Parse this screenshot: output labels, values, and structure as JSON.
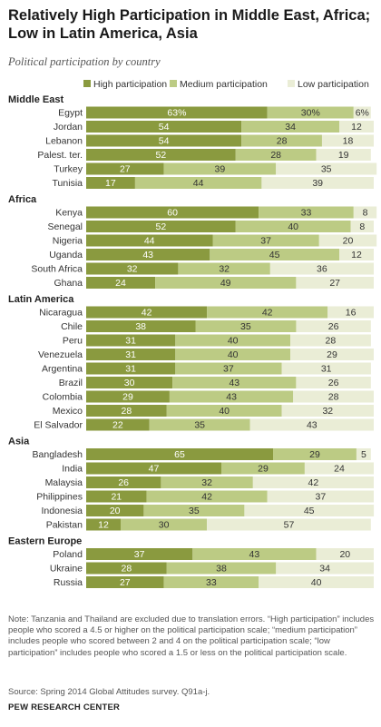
{
  "title": "Relatively High Participation in Middle East, Africa; Low in Latin America, Asia",
  "subtitle": "Political participation by country",
  "note": "Note: Tanzania and Thailand are excluded due to translation errors. “High participation” includes people who scored a 4.5 or higher on the political participation scale; “medium participation” includes people who scored between 2 and 4 on the political participation scale; “low participation” includes people who scored a 1.5 or less on the political participation scale.",
  "source": "Source: Spring 2014 Global Attitudes survey. Q91a-j.",
  "footer": "PEW RESEARCH CENTER",
  "colors": {
    "high": "#8a9a3f",
    "medium": "#bccb84",
    "low": "#eaedd6"
  },
  "chart_data": {
    "type": "bar",
    "stacked": true,
    "orientation": "horizontal",
    "unit": "%",
    "series": [
      {
        "name": "High participation",
        "key": "high"
      },
      {
        "name": "Medium participation",
        "key": "medium"
      },
      {
        "name": "Low participation",
        "key": "low"
      }
    ],
    "groups": [
      {
        "name": "Middle East",
        "rows": [
          {
            "country": "Egypt",
            "values": [
              63,
              30,
              6
            ],
            "labels": [
              "63%",
              "30%",
              "6%"
            ]
          },
          {
            "country": "Jordan",
            "values": [
              54,
              34,
              12
            ]
          },
          {
            "country": "Lebanon",
            "values": [
              54,
              28,
              18
            ]
          },
          {
            "country": "Palest. ter.",
            "values": [
              52,
              28,
              19
            ]
          },
          {
            "country": "Turkey",
            "values": [
              27,
              39,
              35
            ]
          },
          {
            "country": "Tunisia",
            "values": [
              17,
              44,
              39
            ]
          }
        ]
      },
      {
        "name": "Africa",
        "rows": [
          {
            "country": "Kenya",
            "values": [
              60,
              33,
              8
            ]
          },
          {
            "country": "Senegal",
            "values": [
              52,
              40,
              8
            ]
          },
          {
            "country": "Nigeria",
            "values": [
              44,
              37,
              20
            ]
          },
          {
            "country": "Uganda",
            "values": [
              43,
              45,
              12
            ]
          },
          {
            "country": "South Africa",
            "values": [
              32,
              32,
              36
            ]
          },
          {
            "country": "Ghana",
            "values": [
              24,
              49,
              27
            ]
          }
        ]
      },
      {
        "name": "Latin America",
        "rows": [
          {
            "country": "Nicaragua",
            "values": [
              42,
              42,
              16
            ]
          },
          {
            "country": "Chile",
            "values": [
              38,
              35,
              26
            ]
          },
          {
            "country": "Peru",
            "values": [
              31,
              40,
              28
            ]
          },
          {
            "country": "Venezuela",
            "values": [
              31,
              40,
              29
            ]
          },
          {
            "country": "Argentina",
            "values": [
              31,
              37,
              31
            ]
          },
          {
            "country": "Brazil",
            "values": [
              30,
              43,
              26
            ]
          },
          {
            "country": "Colombia",
            "values": [
              29,
              43,
              28
            ]
          },
          {
            "country": "Mexico",
            "values": [
              28,
              40,
              32
            ]
          },
          {
            "country": "El Salvador",
            "values": [
              22,
              35,
              43
            ]
          }
        ]
      },
      {
        "name": "Asia",
        "rows": [
          {
            "country": "Bangladesh",
            "values": [
              65,
              29,
              5
            ]
          },
          {
            "country": "India",
            "values": [
              47,
              29,
              24
            ]
          },
          {
            "country": "Malaysia",
            "values": [
              26,
              32,
              42
            ]
          },
          {
            "country": "Philippines",
            "values": [
              21,
              42,
              37
            ]
          },
          {
            "country": "Indonesia",
            "values": [
              20,
              35,
              45
            ]
          },
          {
            "country": "Pakistan",
            "values": [
              12,
              30,
              57
            ]
          }
        ]
      },
      {
        "name": "Eastern Europe",
        "rows": [
          {
            "country": "Poland",
            "values": [
              37,
              43,
              20
            ]
          },
          {
            "country": "Ukraine",
            "values": [
              28,
              38,
              34
            ]
          },
          {
            "country": "Russia",
            "values": [
              27,
              33,
              40
            ]
          }
        ]
      }
    ]
  }
}
